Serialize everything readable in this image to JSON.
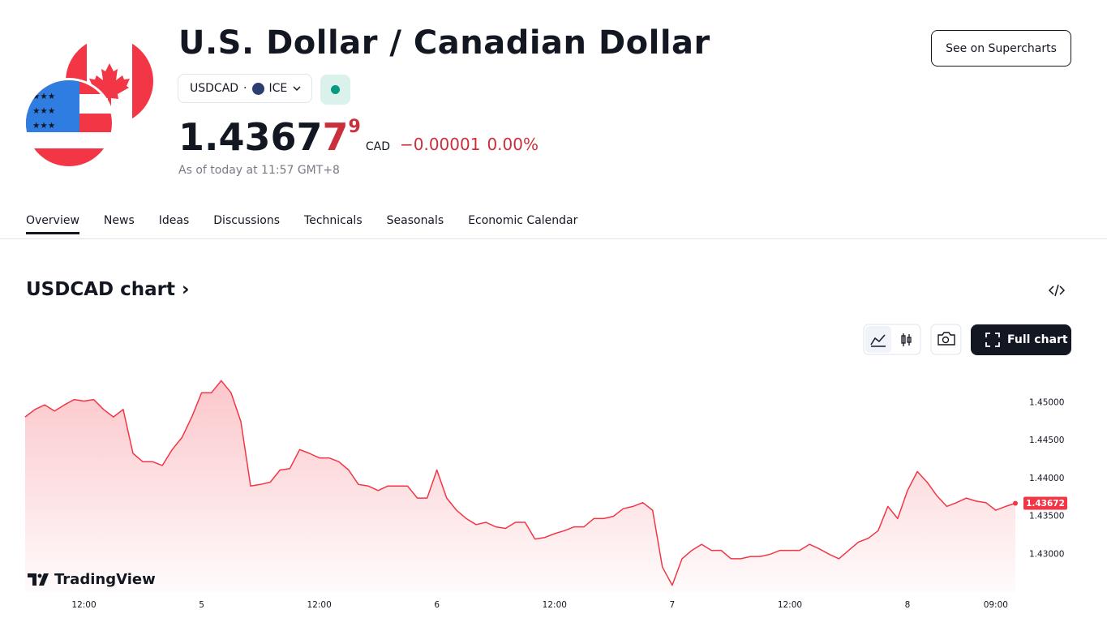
{
  "header": {
    "title": "U.S. Dollar / Canadian Dollar",
    "symbol": "USDCAD",
    "exchange": "ICE",
    "button": "See on Supercharts"
  },
  "quote": {
    "price_main": "1.4367",
    "price_emphasis": "7",
    "price_superscript": "9",
    "currency": "CAD",
    "change": "−0.00001",
    "change_percent": "0.00%",
    "timestamp": "As of today at 11:57 GMT+8"
  },
  "tabs": [
    "Overview",
    "News",
    "Ideas",
    "Discussions",
    "Technicals",
    "Seasonals",
    "Economic Calendar"
  ],
  "section": {
    "title": "USDCAD chart",
    "full_chart_button": "Full chart",
    "logo": "TradingView"
  },
  "chart_data": {
    "type": "line",
    "color": "#f23645",
    "categories": [
      null,
      null,
      null,
      null,
      null,
      null,
      "12:00",
      null,
      null,
      null,
      null,
      null,
      null,
      null,
      null,
      null,
      null,
      null,
      "5",
      null,
      null,
      null,
      null,
      null,
      null,
      null,
      null,
      null,
      null,
      null,
      "12:00",
      null,
      null,
      null,
      null,
      null,
      null,
      null,
      null,
      null,
      null,
      null,
      "6",
      null,
      null,
      null,
      null,
      null,
      null,
      null,
      null,
      null,
      null,
      null,
      "12:00",
      null,
      null,
      null,
      null,
      null,
      null,
      null,
      null,
      null,
      null,
      null,
      "7",
      null,
      null,
      null,
      null,
      null,
      null,
      null,
      null,
      null,
      null,
      null,
      "12:00",
      null,
      null,
      null,
      null,
      null,
      null,
      null,
      null,
      null,
      null,
      null,
      "8",
      null,
      null,
      null,
      null,
      null,
      null,
      null,
      null,
      "09:00",
      null,
      null
    ],
    "values": [
      1.4481,
      1.4491,
      1.4497,
      1.4489,
      1.4497,
      1.4504,
      1.4502,
      1.4504,
      1.4491,
      1.4481,
      1.4491,
      1.4433,
      1.4422,
      1.4422,
      1.4417,
      1.4438,
      1.4454,
      1.4481,
      1.4513,
      1.4513,
      1.4529,
      1.4513,
      1.4475,
      1.439,
      1.4392,
      1.4395,
      1.4411,
      1.4413,
      1.4438,
      1.4433,
      1.4427,
      1.4427,
      1.4422,
      1.4411,
      1.4392,
      1.439,
      1.4384,
      1.439,
      1.439,
      1.439,
      1.4374,
      1.4374,
      1.4411,
      1.4374,
      1.4358,
      1.4347,
      1.4339,
      1.4342,
      1.4336,
      1.4334,
      1.4342,
      1.4342,
      1.432,
      1.4322,
      1.4327,
      1.4331,
      1.4336,
      1.4336,
      1.4347,
      1.4347,
      1.435,
      1.436,
      1.4363,
      1.4368,
      1.4358,
      1.4283,
      1.4259,
      1.4294,
      1.4305,
      1.4313,
      1.4305,
      1.4305,
      1.4294,
      1.4294,
      1.4297,
      1.4297,
      1.43,
      1.4305,
      1.4305,
      1.4305,
      1.4313,
      1.4307,
      1.43,
      1.4294,
      1.4305,
      1.4316,
      1.4321,
      1.4331,
      1.4363,
      1.4347,
      1.4384,
      1.4409,
      1.4395,
      1.4377,
      1.4363,
      1.4368,
      1.4374,
      1.437,
      1.4368,
      1.4358,
      1.4363,
      1.43672
    ],
    "last_value": 1.43672,
    "ylim": [
      1.425,
      1.454
    ],
    "yticks": [
      {
        "value": 1.43,
        "label": "1.43000"
      },
      {
        "value": 1.435,
        "label": "1.43500"
      },
      {
        "value": 1.44,
        "label": "1.44000"
      },
      {
        "value": 1.445,
        "label": "1.44500"
      },
      {
        "value": 1.45,
        "label": "1.45000"
      }
    ],
    "grid": false
  }
}
